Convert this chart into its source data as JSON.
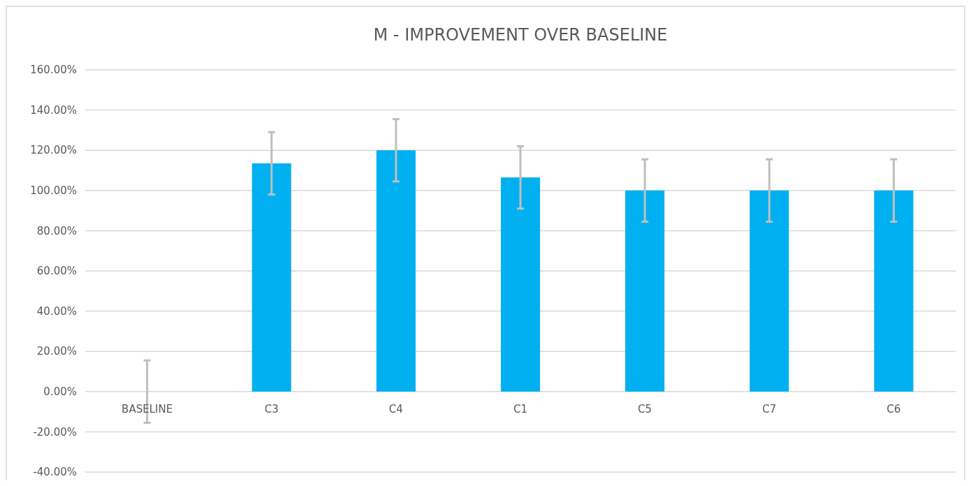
{
  "chart_data": {
    "type": "bar",
    "title": "M - IMPROVEMENT OVER BASELINE",
    "categories": [
      "BASELINE",
      "C3",
      "C4",
      "C1",
      "C5",
      "C7",
      "C6"
    ],
    "values": [
      0,
      113.5,
      120,
      106.5,
      100,
      100,
      100
    ],
    "errors": [
      15.5,
      15.5,
      15.5,
      15.5,
      15.5,
      15.5,
      15.5
    ],
    "color": "#00b0f0",
    "ylim": [
      -40,
      160
    ],
    "yticks": [
      {
        "value": -40,
        "label": "-40.00%"
      },
      {
        "value": -20,
        "label": "-20.00%"
      },
      {
        "value": 0,
        "label": "0.00%"
      },
      {
        "value": 20,
        "label": "20.00%"
      },
      {
        "value": 40,
        "label": "40.00%"
      },
      {
        "value": 60,
        "label": "60.00%"
      },
      {
        "value": 80,
        "label": "80.00%"
      },
      {
        "value": 100,
        "label": "100.00%"
      },
      {
        "value": 120,
        "label": "120.00%"
      },
      {
        "value": 140,
        "label": "140.00%"
      },
      {
        "value": 160,
        "label": "160.00%"
      }
    ],
    "grid": "y"
  }
}
